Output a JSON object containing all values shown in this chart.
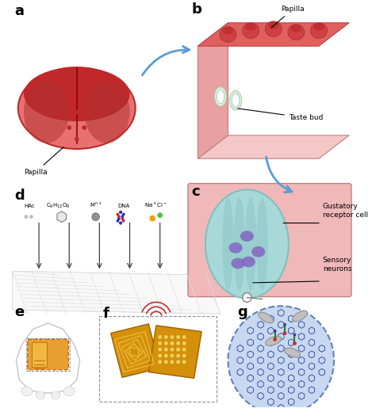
{
  "bg_color": "#ffffff",
  "panel_labels": [
    "a",
    "b",
    "c",
    "d",
    "e",
    "f",
    "g"
  ],
  "panel_label_color": "#000000",
  "panel_label_fontsize": 13,
  "panel_label_fontweight": "bold",
  "tongue_color_dark": "#c0282a",
  "tongue_color_light": "#e87070",
  "tongue_shadow": "#b03030",
  "papilla_b_color": "#d96060",
  "tastebud_color_outer": "#e8a0a0",
  "tastebud_color_inner": "#f0c8c8",
  "cell_outer_color": "#a8d8d8",
  "cell_inner_color": "#c8f0f0",
  "cell_spots_color": "#8060c0",
  "cell_wall_color": "#80c0c0",
  "grid_color": "#e0e0e0",
  "arrow_color": "#5b9bd5",
  "arrow_color_small": "#404040",
  "tooth_color_outer": "#f8f8f8",
  "tooth_color_inner": "#ffffff",
  "sensor_color": "#e8a030",
  "sensor_dark": "#c07010",
  "graphene_bg": "#c8d8f0",
  "graphene_line": "#2040a0",
  "text_color": "#000000",
  "label_fontsize": 7,
  "annotation_fontsize": 6.5
}
